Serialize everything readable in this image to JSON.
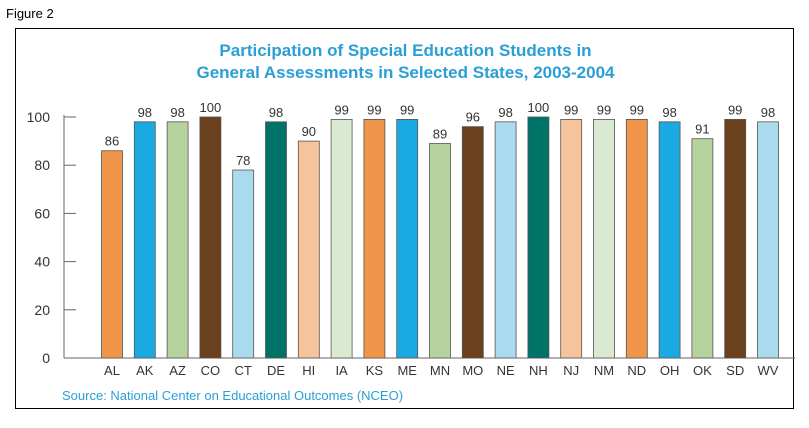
{
  "figure_label": "Figure 2",
  "chart_data": {
    "type": "bar",
    "title_line1": "Participation of Special Education Students in",
    "title_line2": "General Assessments in Selected States, 2003-2004",
    "source": "Source: National Center on Educational Outcomes (NCEO)",
    "xlabel": "",
    "ylabel": "",
    "ylim": [
      0,
      100
    ],
    "yticks": [
      "0",
      "20",
      "40",
      "60",
      "80",
      "100"
    ],
    "grid": false,
    "legend": "none",
    "categories": [
      "AL",
      "AK",
      "AZ",
      "CO",
      "CT",
      "DE",
      "HI",
      "IA",
      "KS",
      "ME",
      "MN",
      "MO",
      "NE",
      "NH",
      "NJ",
      "NM",
      "ND",
      "OH",
      "OK",
      "SD",
      "WV"
    ],
    "values": [
      86,
      98,
      98,
      100,
      78,
      98,
      90,
      99,
      99,
      99,
      89,
      96,
      98,
      100,
      99,
      99,
      99,
      98,
      91,
      99,
      98
    ],
    "value_labels": [
      "86",
      "98",
      "98",
      "100",
      "78",
      "98",
      "90",
      "99",
      "99",
      "99",
      "89",
      "96",
      "98",
      "100",
      "99",
      "99",
      "99",
      "98",
      "91",
      "99",
      "98"
    ],
    "colors": [
      "#ef9549",
      "#1ba9e1",
      "#b6d39f",
      "#6b401c",
      "#a9daee",
      "#007368",
      "#f6c39a",
      "#daead2",
      "#ef9549",
      "#1ba9e1",
      "#b6d39f",
      "#6b401c",
      "#a9daee",
      "#007368",
      "#f6c39a",
      "#daead2",
      "#ef9549",
      "#1ba9e1",
      "#b6d39f",
      "#6b401c",
      "#a9daee"
    ],
    "text_color": "#2a9fd6",
    "axis_color": "#666666"
  }
}
